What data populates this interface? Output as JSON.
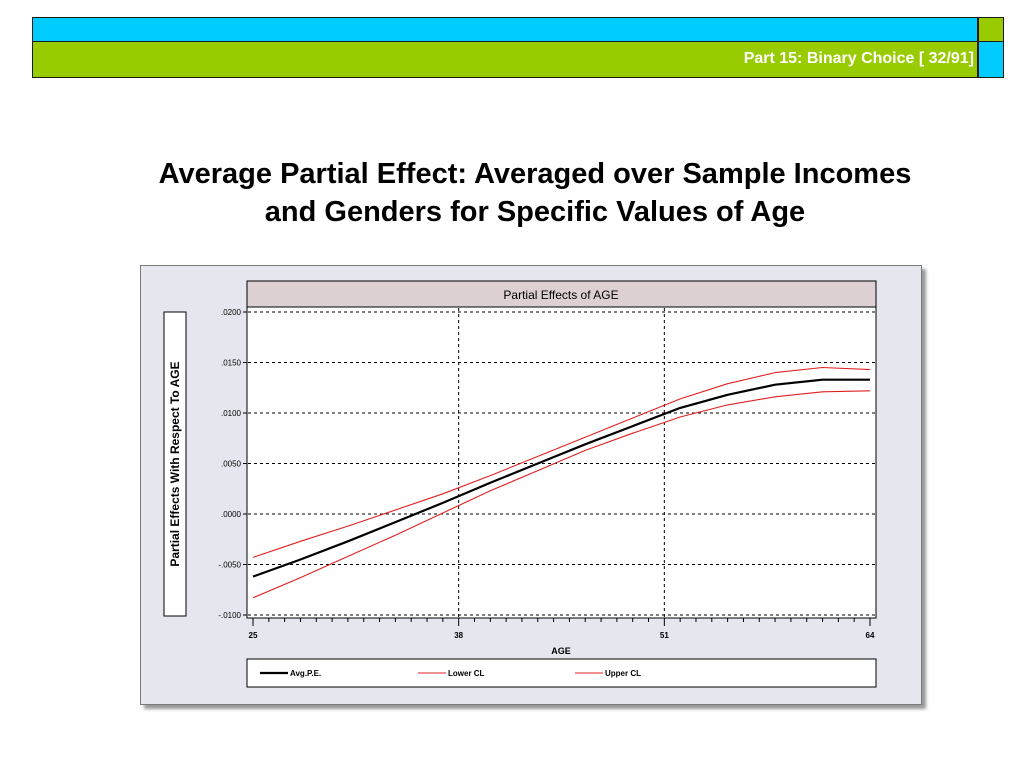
{
  "header": {
    "label": "Part 15: Binary Choice [ 32/91]"
  },
  "slide": {
    "title_line1": "Average Partial Effect: Averaged over Sample Incomes",
    "title_line2": "and Genders for Specific Values of Age"
  },
  "chart_data": {
    "type": "line",
    "title": "Partial Effects of AGE",
    "xlabel": "AGE",
    "ylabel": "Partial Effects With Respect To AGE",
    "xlim": [
      25,
      64
    ],
    "ylim": [
      -0.01,
      0.02
    ],
    "xticks": [
      25,
      38,
      51,
      64
    ],
    "xtick_labels": [
      "25",
      "38",
      "51",
      "64"
    ],
    "yticks": [
      0.02,
      0.015,
      0.01,
      0.005,
      0.0,
      -0.005,
      -0.01
    ],
    "ytick_labels": [
      ".0200",
      ".0150",
      ".0100",
      ".0050",
      ".0000",
      "-.0050",
      "-.0100"
    ],
    "grid": true,
    "legend_position": "bottom",
    "x": [
      25,
      28,
      31,
      34,
      37,
      40,
      43,
      46,
      49,
      52,
      55,
      58,
      61,
      64
    ],
    "series": [
      {
        "name": "Avg.P.E.",
        "color": "#000000",
        "values": [
          -0.0062,
          -0.0045,
          -0.0027,
          -0.0008,
          0.0011,
          0.0031,
          0.005,
          0.0069,
          0.0087,
          0.0105,
          0.0118,
          0.0128,
          0.0133,
          0.0133
        ]
      },
      {
        "name": "Lower CL",
        "color": "#e02020",
        "values": [
          -0.0083,
          -0.0063,
          -0.0042,
          -0.0021,
          0.0001,
          0.0023,
          0.0043,
          0.0063,
          0.008,
          0.0096,
          0.0108,
          0.0116,
          0.0121,
          0.0122
        ]
      },
      {
        "name": "Upper CL",
        "color": "#e02020",
        "values": [
          -0.0043,
          -0.0027,
          -0.0012,
          0.0004,
          0.002,
          0.0038,
          0.0057,
          0.0076,
          0.0095,
          0.0114,
          0.0129,
          0.014,
          0.0145,
          0.0143
        ]
      }
    ]
  }
}
